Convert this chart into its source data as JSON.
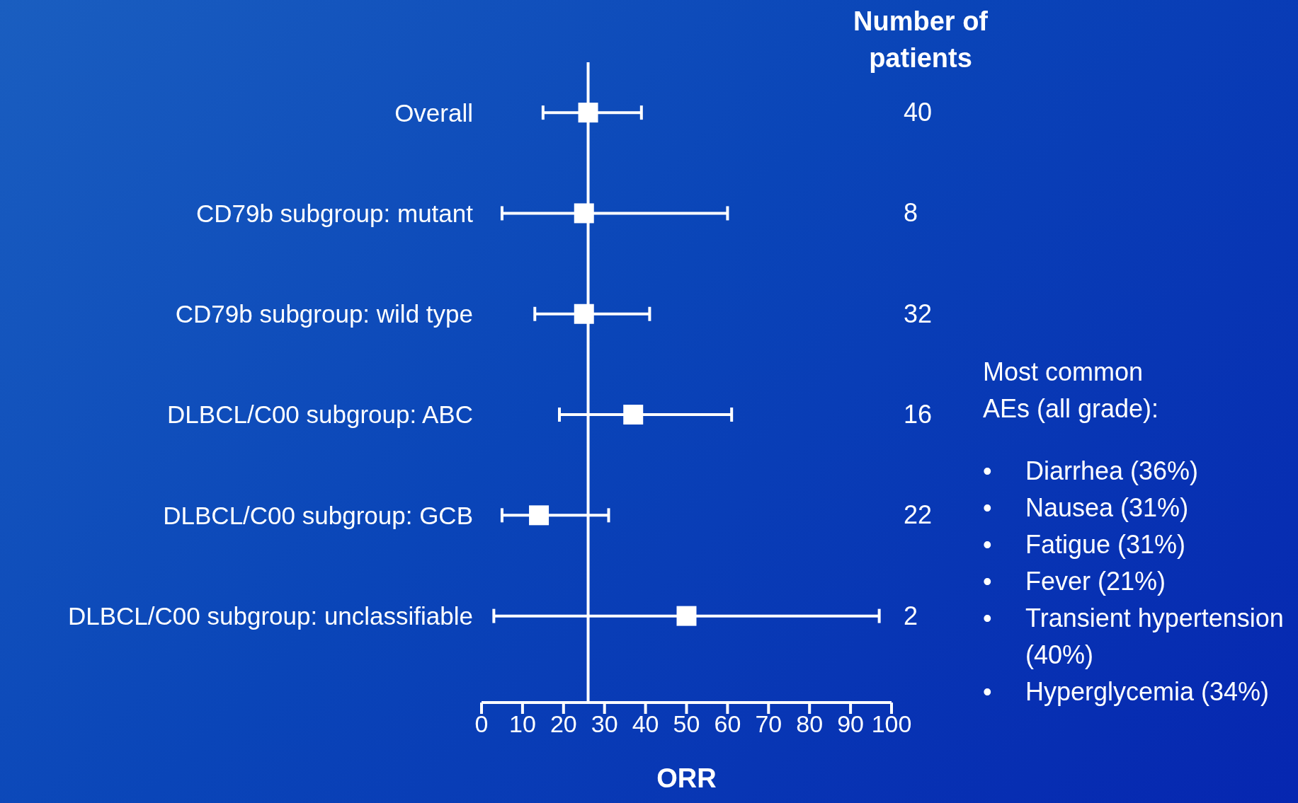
{
  "chart_data": {
    "type": "scatter",
    "orientation": "horizontal",
    "xlabel": "ORR",
    "categories": [
      "Overall",
      "CD79b subgroup: mutant",
      "CD79b subgroup: wild type",
      "DLBCL/C00 subgroup: ABC",
      "DLBCL/C00 subgroup: GCB",
      "DLBCL/C00 subgroup: unclassifiable"
    ],
    "series": [
      {
        "color": "#ffffff",
        "values": [
          26,
          25,
          25,
          37,
          14,
          50
        ],
        "errors": [
          [
            15,
            39
          ],
          [
            5,
            60
          ],
          [
            13,
            41
          ],
          [
            19,
            61
          ],
          [
            5,
            31
          ],
          [
            3,
            97
          ]
        ]
      }
    ],
    "xlim": [
      0,
      100
    ],
    "xticks": [
      0,
      10,
      20,
      30,
      40,
      50,
      60,
      70,
      80,
      90,
      100
    ],
    "ref_lines": [
      {
        "axis": "x",
        "value": 26,
        "color": "#ffffff"
      }
    ],
    "marker": "square",
    "grid": false,
    "legend": false,
    "annotations": [
      "Number of patients",
      "Most common AEs (all grade):",
      "• Diarrhea (36%)",
      "• Nausea (31%)",
      "• Fatigue (31%)",
      "• Fever (21%)",
      "• Transient hypertension (40%)",
      "• Hyperglycemia (34%)",
      "40",
      "8",
      "32",
      "16",
      "22",
      "2"
    ]
  }
}
